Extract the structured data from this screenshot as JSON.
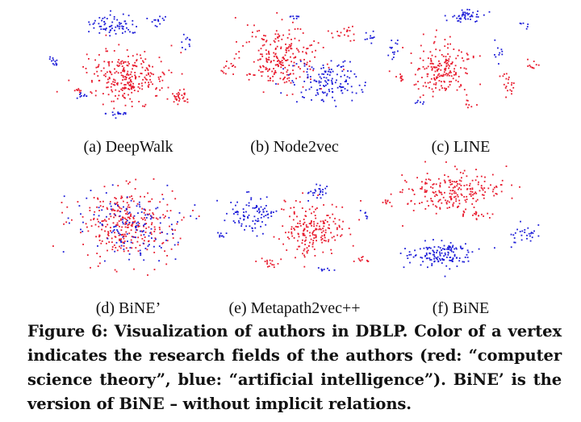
{
  "figure": {
    "panels": [
      {
        "caption": "(a) DeepWalk"
      },
      {
        "caption": "(b) Node2vec"
      },
      {
        "caption": "(c) LINE"
      },
      {
        "caption": "(d) BiNE’"
      },
      {
        "caption": "(e) Metapath2vec++"
      },
      {
        "caption": "(f) BiNE"
      }
    ],
    "caption": "Figure 6: Visualization of authors in DBLP. Color of a vertex indicates the research fields of the authors (red: “computer science theory”, blue: “artificial intelligence”). BiNE’ is the version of BiNE – without implicit relations."
  },
  "colors": {
    "red": "#e8192c",
    "blue": "#1c1cd8"
  }
}
